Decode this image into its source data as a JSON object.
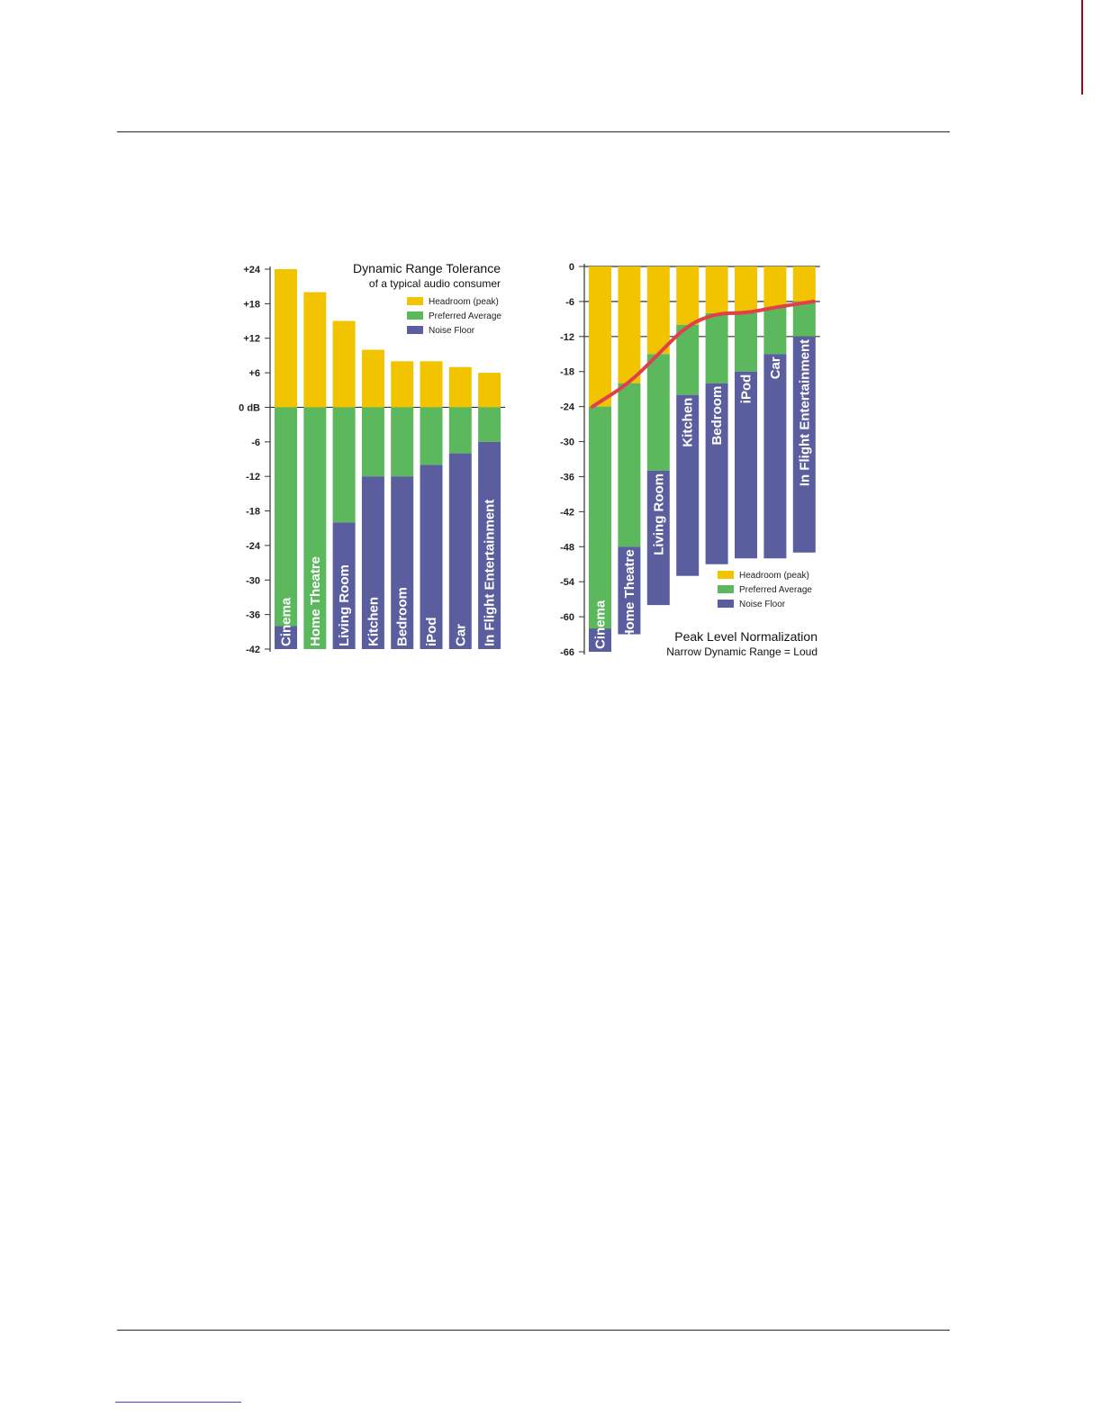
{
  "colors": {
    "headroom": "#f2c400",
    "preferred": "#5cb85c",
    "noise": "#5b5e9e",
    "curve": "#e0404a"
  },
  "chart_data": [
    {
      "type": "bar",
      "stacked": true,
      "title": "Dynamic Range Tolerance",
      "subtitle": "of a typical audio consumer",
      "ylim": [
        -42,
        24
      ],
      "yticks": [
        24,
        18,
        12,
        6,
        0,
        -6,
        -12,
        -18,
        -24,
        -30,
        -36,
        -42
      ],
      "ytick_labels": [
        "+24",
        "+18",
        "+12",
        "+6",
        "0 dB",
        "-6",
        "-12",
        "-18",
        "-24",
        "-30",
        "-36",
        "-42"
      ],
      "gridlines": [
        0
      ],
      "legend_position": "top-right",
      "categories": [
        "Cinema",
        "Home Theatre",
        "Living Room",
        "Kitchen",
        "Bedroom",
        "iPod",
        "Car",
        "In Flight Entertainment"
      ],
      "series": [
        {
          "name": "Headroom (peak)",
          "range_top": [
            24,
            20,
            15,
            10,
            8,
            8,
            7,
            6
          ],
          "range_bottom": [
            0,
            0,
            0,
            0,
            0,
            0,
            0,
            0
          ]
        },
        {
          "name": "Preferred Average",
          "range_top": [
            0,
            0,
            0,
            0,
            0,
            0,
            0,
            0
          ],
          "range_bottom": [
            -38,
            -42,
            -20,
            -12,
            -12,
            -10,
            -8,
            -6
          ]
        },
        {
          "name": "Noise Floor",
          "range_top": [
            -38,
            -42,
            -20,
            -12,
            -12,
            -10,
            -8,
            -6
          ],
          "range_bottom": [
            -42,
            -42,
            -42,
            -42,
            -42,
            -42,
            -42,
            -42
          ]
        }
      ]
    },
    {
      "type": "bar",
      "stacked": true,
      "title": "Peak Level Normalization",
      "subtitle": "Narrow Dynamic Range = Loud",
      "ylim": [
        -66,
        0
      ],
      "yticks": [
        0,
        -6,
        -12,
        -18,
        -24,
        -30,
        -36,
        -42,
        -48,
        -54,
        -60,
        -66
      ],
      "ytick_labels": [
        "0",
        "-6",
        "-12",
        "-18",
        "-24",
        "-30",
        "-36",
        "-42",
        "-48",
        "-54",
        "-60",
        "-66"
      ],
      "gridlines": [
        0,
        -6,
        -12
      ],
      "legend_position": "bottom-right",
      "categories": [
        "Cinema",
        "Home Theatre",
        "Living Room",
        "Kitchen",
        "Bedroom",
        "iPod",
        "Car",
        "In Flight Entertainment"
      ],
      "series": [
        {
          "name": "Headroom (peak)",
          "range_top": [
            0,
            0,
            0,
            0,
            0,
            0,
            0,
            0
          ],
          "range_bottom": [
            -24,
            -20,
            -15,
            -10,
            -8,
            -8,
            -7,
            -6
          ]
        },
        {
          "name": "Preferred Average",
          "range_top": [
            -24,
            -20,
            -15,
            -10,
            -8,
            -8,
            -7,
            -6
          ],
          "range_bottom": [
            -62,
            -48,
            -35,
            -22,
            -20,
            -18,
            -15,
            -12
          ]
        },
        {
          "name": "Noise Floor",
          "range_top": [
            -62,
            -48,
            -35,
            -22,
            -20,
            -18,
            -15,
            -12
          ],
          "range_bottom": [
            -66,
            -63,
            -58,
            -53,
            -51,
            -50,
            -50,
            -49
          ]
        }
      ],
      "trend_curve": {
        "y": [
          -24,
          -20,
          -15,
          -10,
          -8,
          -8,
          -7,
          -6
        ]
      }
    }
  ]
}
